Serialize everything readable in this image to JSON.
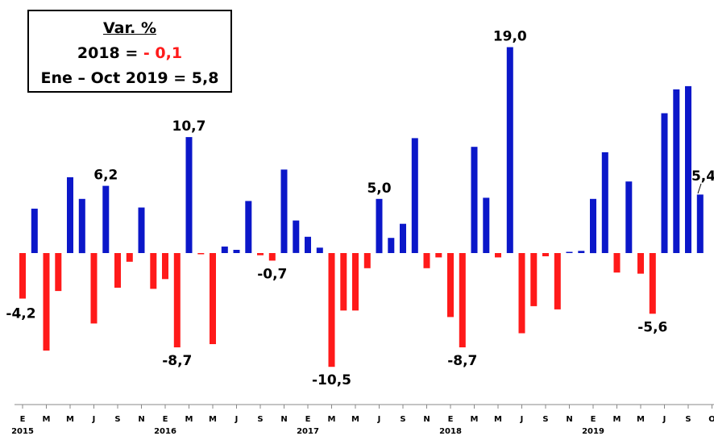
{
  "legend": {
    "title": "Var. %",
    "line1_prefix": "2018 = ",
    "line1_value": "- 0,1",
    "line2": "Ene – Oct 2019 = 5,8"
  },
  "colors": {
    "positive": "#0b17c9",
    "negative": "#ff1a1a",
    "axis": "#000000"
  },
  "chart_data": {
    "type": "bar",
    "title": "",
    "xlabel": "",
    "ylabel": "",
    "ylim": [
      -13,
      20
    ],
    "grid": false,
    "categories": [
      "E",
      "F",
      "M",
      "A",
      "M",
      "J",
      "J",
      "A",
      "S",
      "O",
      "N",
      "D",
      "E",
      "F",
      "M",
      "A",
      "M",
      "J",
      "J",
      "A",
      "S",
      "O",
      "N",
      "D",
      "E",
      "F",
      "M",
      "A",
      "M",
      "J",
      "J",
      "A",
      "S",
      "O",
      "N",
      "D",
      "E",
      "F",
      "M",
      "A",
      "M",
      "J",
      "J",
      "A",
      "S",
      "O",
      "N",
      "D",
      "E",
      "F",
      "M",
      "A",
      "M",
      "J",
      "J",
      "A",
      "S",
      "O"
    ],
    "tick_labels": [
      "E",
      "M",
      "M",
      "J",
      "S",
      "N",
      "E",
      "M",
      "M",
      "J",
      "S",
      "N",
      "E",
      "M",
      "M",
      "J",
      "S",
      "N",
      "E",
      "M",
      "M",
      "J",
      "S",
      "N",
      "E",
      "M",
      "M",
      "J",
      "S",
      "O"
    ],
    "year_labels": [
      {
        "label": "2015",
        "index": 0
      },
      {
        "label": "2016",
        "index": 12
      },
      {
        "label": "2017",
        "index": 24
      },
      {
        "label": "2018",
        "index": 36
      },
      {
        "label": "2019",
        "index": 48
      }
    ],
    "values": [
      -4.2,
      4.1,
      -9.0,
      -3.5,
      7.0,
      5.0,
      -6.5,
      6.2,
      -3.2,
      -0.8,
      4.2,
      -3.3,
      -2.4,
      -8.7,
      10.7,
      -0.1,
      -8.4,
      0.6,
      0.3,
      4.8,
      -0.2,
      -0.7,
      7.7,
      3.0,
      1.5,
      0.5,
      -10.5,
      -5.3,
      -5.3,
      -1.4,
      5.0,
      1.4,
      2.7,
      10.6,
      -1.4,
      -0.4,
      -5.9,
      -8.7,
      9.8,
      5.1,
      -0.4,
      19.0,
      -7.4,
      -4.9,
      -0.3,
      -5.2,
      0.1,
      0.2,
      5.0,
      9.3,
      -1.8,
      6.6,
      -1.9,
      -5.6,
      12.9,
      15.1,
      15.4,
      5.4
    ],
    "data_labels": [
      {
        "index": 0,
        "text": "-4,2"
      },
      {
        "index": 7,
        "text": "6,2"
      },
      {
        "index": 13,
        "text": "-8,7"
      },
      {
        "index": 14,
        "text": "10,7"
      },
      {
        "index": 21,
        "text": "-0,7"
      },
      {
        "index": 26,
        "text": "-10,5"
      },
      {
        "index": 30,
        "text": "5,0"
      },
      {
        "index": 37,
        "text": "-8,7"
      },
      {
        "index": 41,
        "text": "19,0"
      },
      {
        "index": 53,
        "text": "-5,6"
      },
      {
        "index": 57,
        "text": "5,4"
      }
    ]
  }
}
